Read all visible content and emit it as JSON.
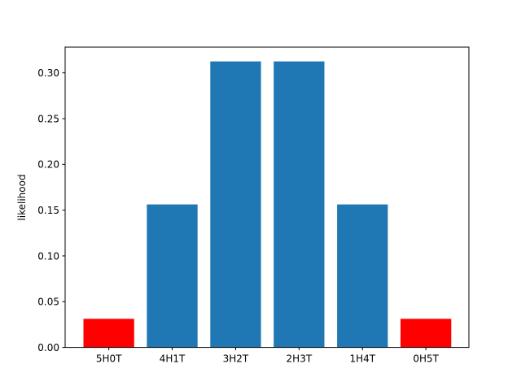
{
  "chart_data": {
    "type": "bar",
    "title": "",
    "xlabel": "",
    "ylabel": "likelihood",
    "categories": [
      "5H0T",
      "4H1T",
      "3H2T",
      "2H3T",
      "1H4T",
      "0H5T"
    ],
    "values": [
      0.03125,
      0.15625,
      0.3125,
      0.3125,
      0.15625,
      0.03125
    ],
    "bar_colors": [
      "#ff0000",
      "#1f77b4",
      "#1f77b4",
      "#1f77b4",
      "#1f77b4",
      "#ff0000"
    ],
    "ylim": [
      0,
      0.328125
    ],
    "yticks": [
      0.0,
      0.05,
      0.1,
      0.15,
      0.2,
      0.25,
      0.3
    ],
    "ytick_labels": [
      "0.00",
      "0.05",
      "0.10",
      "0.15",
      "0.20",
      "0.25",
      "0.30"
    ],
    "grid": false,
    "legend": "none"
  }
}
